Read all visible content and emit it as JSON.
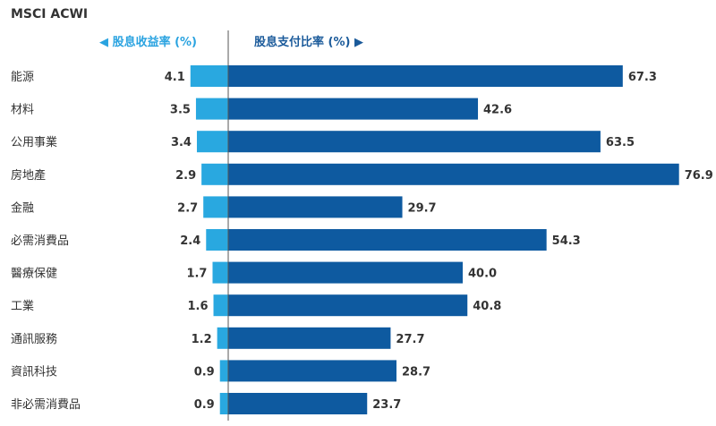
{
  "chart_data": {
    "type": "bar",
    "title": "MSCI ACWI",
    "categories": [
      "能源",
      "材料",
      "公用事業",
      "房地產",
      "金融",
      "必需消費品",
      "醫療保健",
      "工業",
      "通訊服務",
      "資訊科技",
      "非必需消費品"
    ],
    "series": [
      {
        "name": "股息收益率 (%)",
        "direction": "left",
        "color": "#29a8e0",
        "values": [
          4.1,
          3.5,
          3.4,
          2.9,
          2.7,
          2.4,
          1.7,
          1.6,
          1.2,
          0.9,
          0.9
        ]
      },
      {
        "name": "股息支付比率 (%)",
        "direction": "right",
        "color": "#0e5aa0",
        "values": [
          67.3,
          42.6,
          63.5,
          76.9,
          29.7,
          54.3,
          40.0,
          40.8,
          27.7,
          28.7,
          23.7
        ]
      }
    ],
    "left_arrow": "◀",
    "right_arrow": "▶",
    "grid": false
  }
}
